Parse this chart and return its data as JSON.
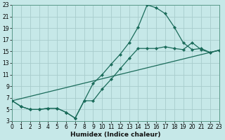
{
  "xlabel": "Humidex (Indice chaleur)",
  "bg_color": "#c6e8e8",
  "grid_color": "#a8cccc",
  "line_color": "#1a6b5a",
  "xlim": [
    0,
    23
  ],
  "ylim": [
    3,
    23
  ],
  "xticks": [
    0,
    1,
    2,
    3,
    4,
    5,
    6,
    7,
    8,
    9,
    10,
    11,
    12,
    13,
    14,
    15,
    16,
    17,
    18,
    19,
    20,
    21,
    22,
    23
  ],
  "yticks": [
    3,
    5,
    7,
    9,
    11,
    13,
    15,
    17,
    19,
    21,
    23
  ],
  "curve1_x": [
    0,
    1,
    2,
    3,
    4,
    5,
    6,
    7,
    8,
    9,
    10,
    11,
    12,
    13,
    14,
    15,
    16,
    17,
    18,
    19,
    20,
    21,
    22,
    23
  ],
  "curve1_y": [
    6.5,
    5.5,
    5.0,
    5.0,
    5.2,
    5.2,
    4.5,
    3.5,
    6.5,
    9.5,
    11.0,
    12.8,
    14.5,
    16.5,
    19.2,
    23.0,
    22.5,
    21.5,
    19.2,
    16.5,
    15.3,
    15.5,
    14.8,
    15.2
  ],
  "curve2_x": [
    0,
    1,
    2,
    3,
    4,
    5,
    6,
    7,
    8,
    9,
    10,
    11,
    12,
    13,
    14,
    15,
    16,
    17,
    18,
    19,
    20,
    21,
    22,
    23
  ],
  "curve2_y": [
    6.5,
    5.5,
    5.0,
    5.0,
    5.2,
    5.2,
    4.5,
    3.5,
    6.5,
    6.5,
    8.5,
    10.2,
    12.0,
    13.8,
    15.5,
    15.5,
    15.5,
    15.8,
    15.5,
    15.3,
    16.5,
    15.3,
    14.8,
    15.2
  ],
  "line3_x": [
    0,
    23
  ],
  "line3_y": [
    6.5,
    15.2
  ]
}
